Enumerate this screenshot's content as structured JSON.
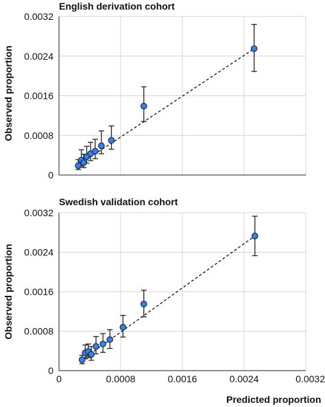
{
  "ylabel": "Observed proportion",
  "xlabel": "Predicted proportion",
  "x_ticks": [
    "0",
    "0.0008",
    "0.0016",
    "0.0024",
    "0.0032"
  ],
  "y_ticks": [
    "0",
    "0.0008",
    "0.0016",
    "0.0024",
    "0.0032"
  ],
  "chart_data": [
    {
      "type": "scatter",
      "title": "English derivation cohort",
      "xlabel": "",
      "ylabel": "Observed proportion",
      "xlim": [
        0,
        0.0032
      ],
      "ylim": [
        0,
        0.0032
      ],
      "grid": true,
      "x": [
        0.00025,
        0.00029,
        0.00032,
        0.00036,
        0.00041,
        0.00047,
        0.00055,
        0.00068,
        0.0011,
        0.00253
      ],
      "y": [
        0.00019,
        0.0003,
        0.00025,
        0.00037,
        0.00043,
        0.00048,
        0.00059,
        0.0007,
        0.00139,
        0.00255
      ],
      "err_low": [
        0.00011,
        0.00018,
        0.00015,
        0.00024,
        0.00029,
        0.00033,
        0.00043,
        0.00052,
        0.00108,
        0.00209
      ],
      "err_high": [
        0.00031,
        0.00051,
        0.00042,
        0.00058,
        0.00066,
        0.00072,
        0.00089,
        0.00099,
        0.00178,
        0.00304
      ],
      "trend_line": {
        "x": [
          0.00025,
          0.00253
        ],
        "y": [
          0.0002,
          0.00255
        ]
      }
    },
    {
      "type": "scatter",
      "title": "Swedish validation cohort",
      "xlabel": "Predicted proportion",
      "ylabel": "Observed proportion",
      "xlim": [
        0,
        0.0032
      ],
      "ylim": [
        0,
        0.0032
      ],
      "grid": true,
      "x": [
        0.0003,
        0.00034,
        0.00038,
        0.00042,
        0.00048,
        0.00057,
        0.00066,
        0.00083,
        0.0011,
        0.00254
      ],
      "y": [
        0.00022,
        0.00036,
        0.00039,
        0.00033,
        0.00049,
        0.00054,
        0.00063,
        0.00088,
        0.00135,
        0.00273
      ],
      "err_low": [
        0.00014,
        0.00024,
        0.00026,
        0.00021,
        0.00034,
        0.00037,
        0.00045,
        0.00068,
        0.00109,
        0.00233
      ],
      "err_high": [
        0.00031,
        0.00052,
        0.00054,
        0.00049,
        0.00069,
        0.00075,
        0.00083,
        0.00112,
        0.00163,
        0.00313
      ],
      "trend_line": {
        "x": [
          0.0003,
          0.00254
        ],
        "y": [
          0.00022,
          0.00273
        ]
      }
    }
  ]
}
